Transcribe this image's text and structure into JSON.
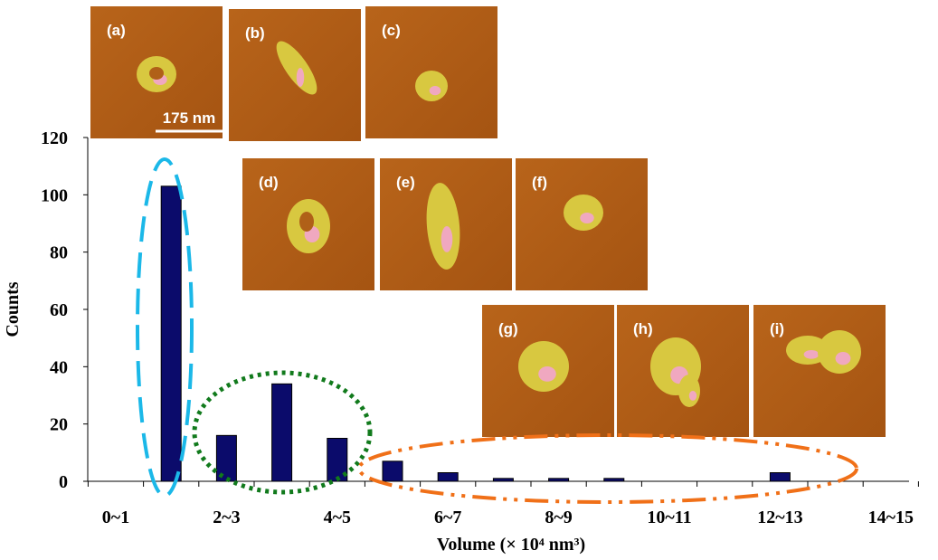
{
  "chart_data": {
    "type": "bar",
    "categories": [
      "0~1",
      null,
      "2~3",
      null,
      "4~5",
      null,
      "6~7",
      null,
      "8~9",
      null,
      "10~11",
      null,
      "12~13",
      null,
      "14~15"
    ],
    "values": [
      0,
      103,
      16,
      34,
      15,
      7,
      3,
      1,
      1,
      1,
      0,
      0,
      3,
      0,
      0
    ],
    "color": "#0b0b6b",
    "ylim": [
      0,
      120
    ],
    "yticks": [
      0,
      20,
      40,
      60,
      80,
      100,
      120
    ],
    "xlabel": "Volume (× 10⁴ nm³)",
    "ylabel": "Counts"
  },
  "insets": [
    {
      "label": "(a)"
    },
    {
      "label": "(b)"
    },
    {
      "label": "(c)"
    },
    {
      "label": "(d)"
    },
    {
      "label": "(e)"
    },
    {
      "label": "(f)"
    },
    {
      "label": "(g)"
    },
    {
      "label": "(h)"
    },
    {
      "label": "(i)"
    }
  ],
  "scale_bar": "175 nm"
}
